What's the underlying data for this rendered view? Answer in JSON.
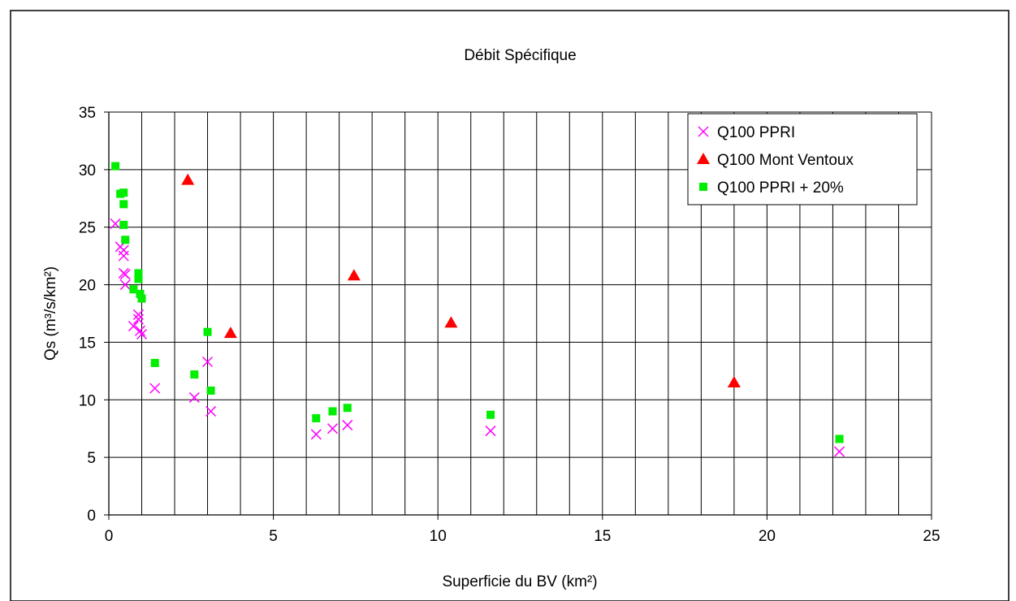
{
  "chart_data": {
    "type": "scatter",
    "title": "Débit Spécifique",
    "xlabel": "Superficie du BV (km²)",
    "ylabel": "Qs (m³/s/km²)",
    "xlim": [
      0,
      25
    ],
    "ylim": [
      0,
      35
    ],
    "xticks": [
      0,
      5,
      10,
      15,
      20,
      25
    ],
    "yticks": [
      0,
      5,
      10,
      15,
      20,
      25,
      30,
      35
    ],
    "x_minor_grid_step": 1,
    "grid": true,
    "legend_position": "top-right",
    "series": [
      {
        "name": "Q100 PPRI",
        "marker": "x",
        "color": "#ff00ff",
        "points": [
          [
            0.2,
            25.3
          ],
          [
            0.35,
            23.3
          ],
          [
            0.45,
            23.0
          ],
          [
            0.45,
            22.5
          ],
          [
            0.45,
            21.0
          ],
          [
            0.5,
            20.9
          ],
          [
            0.5,
            20.0
          ],
          [
            0.75,
            16.4
          ],
          [
            0.9,
            17.4
          ],
          [
            0.9,
            17.0
          ],
          [
            0.95,
            16.0
          ],
          [
            1.0,
            15.7
          ],
          [
            1.4,
            11.0
          ],
          [
            2.6,
            10.2
          ],
          [
            3.0,
            13.3
          ],
          [
            3.1,
            9.0
          ],
          [
            6.3,
            7.0
          ],
          [
            6.8,
            7.5
          ],
          [
            7.25,
            7.8
          ],
          [
            11.6,
            7.3
          ],
          [
            22.2,
            5.5
          ]
        ]
      },
      {
        "name": "Q100 Mont Ventoux",
        "marker": "triangle",
        "color": "#ff0000",
        "points": [
          [
            2.4,
            29.1
          ],
          [
            3.7,
            15.8
          ],
          [
            7.45,
            20.8
          ],
          [
            10.4,
            16.7
          ],
          [
            19.0,
            11.5
          ]
        ]
      },
      {
        "name": "Q100 PPRI + 20%",
        "marker": "square",
        "color": "#00ee00",
        "points": [
          [
            0.2,
            30.3
          ],
          [
            0.35,
            27.9
          ],
          [
            0.45,
            28.0
          ],
          [
            0.45,
            27.0
          ],
          [
            0.45,
            25.2
          ],
          [
            0.5,
            23.9
          ],
          [
            0.9,
            21.0
          ],
          [
            0.9,
            20.5
          ],
          [
            0.75,
            19.6
          ],
          [
            0.95,
            19.2
          ],
          [
            1.0,
            18.8
          ],
          [
            1.4,
            13.2
          ],
          [
            2.6,
            12.2
          ],
          [
            3.0,
            15.9
          ],
          [
            3.1,
            10.8
          ],
          [
            6.3,
            8.4
          ],
          [
            6.8,
            9.0
          ],
          [
            7.25,
            9.3
          ],
          [
            11.6,
            8.7
          ],
          [
            22.2,
            6.6
          ]
        ]
      }
    ]
  }
}
